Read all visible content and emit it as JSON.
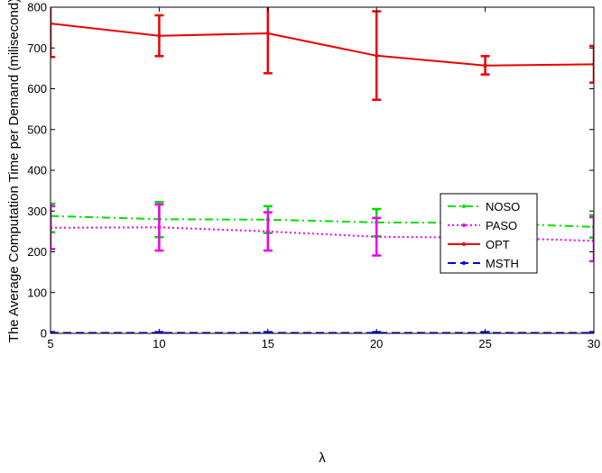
{
  "chart_data": {
    "type": "line",
    "title": "",
    "xlabel": "λ",
    "ylabel": "The Average Computation Time per Demand (milisecond)",
    "x": [
      5,
      10,
      15,
      20,
      25,
      30
    ],
    "xlim": [
      5,
      30
    ],
    "ylim": [
      0,
      800
    ],
    "xticks": [
      "5",
      "10",
      "15",
      "20",
      "25",
      "30"
    ],
    "yticks": [
      "0",
      "100",
      "200",
      "300",
      "400",
      "500",
      "600",
      "700",
      "800"
    ],
    "grid": false,
    "legend_position": "right-middle",
    "series": [
      {
        "name": "NOSO",
        "color": "#00e000",
        "style": "dash-dot",
        "values": [
          288,
          280,
          279,
          272,
          271,
          261
        ],
        "error_low": [
          248,
          236,
          246,
          238,
          237,
          235
        ],
        "error_high": [
          318,
          322,
          312,
          305,
          290,
          290
        ],
        "error_color": "#00d800"
      },
      {
        "name": "PASO",
        "color": "#ee00ee",
        "style": "dotted",
        "values": [
          259,
          260,
          250,
          237,
          235,
          227
        ],
        "error_low": [
          207,
          203,
          203,
          191,
          175,
          177
        ],
        "error_high": [
          312,
          316,
          297,
          283,
          296,
          285
        ],
        "error_color": "#ee00ee"
      },
      {
        "name": "OPT",
        "color": "#ee0000",
        "style": "solid",
        "values": [
          760,
          730,
          736,
          681,
          657,
          660
        ],
        "error_low": [
          678,
          680,
          638,
          573,
          635,
          615
        ],
        "error_high": [
          842,
          780,
          833,
          790,
          680,
          705
        ],
        "error_color": "#ee0000"
      },
      {
        "name": "MSTH",
        "color": "#0000ee",
        "style": "dashed",
        "values": [
          1,
          1,
          1,
          1,
          1,
          1
        ],
        "error_low": [
          0,
          0,
          0,
          0,
          0,
          0
        ],
        "error_high": [
          3,
          3,
          3,
          3,
          3,
          3
        ],
        "error_color": "#0000ee"
      }
    ]
  }
}
